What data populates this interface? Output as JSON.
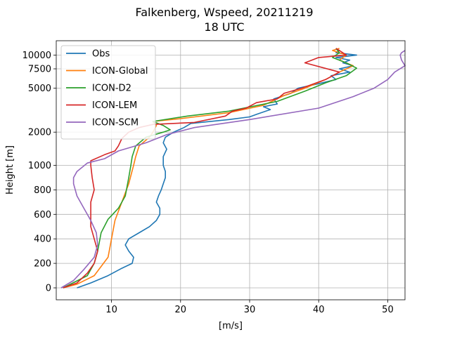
{
  "chart_data": {
    "type": "line",
    "title": "Falkenberg, Wspeed, 20211219",
    "subtitle": "18 UTC",
    "xlabel": "[m/s]",
    "ylabel": "Height [m]",
    "xlim": [
      2,
      52.5
    ],
    "xticks": [
      10,
      20,
      30,
      40,
      50
    ],
    "xtick_labels": [
      "10",
      "20",
      "30",
      "40",
      "50"
    ],
    "y_scale": "piecewise (linear 0–1000 m, logarithmic above)",
    "yticks": [
      0,
      200,
      400,
      600,
      800,
      1000,
      2000,
      5000,
      7500,
      10000
    ],
    "ytick_labels": [
      "0",
      "200",
      "400",
      "600",
      "800",
      "1000",
      "2000",
      "5000",
      "7500",
      "10000"
    ],
    "grid": true,
    "legend_position": "top-left",
    "series": [
      {
        "name": "Obs",
        "color": "#1f77b4",
        "points": [
          [
            5,
            0
          ],
          [
            7,
            40
          ],
          [
            9.5,
            100
          ],
          [
            11.5,
            160
          ],
          [
            13,
            200
          ],
          [
            13.2,
            250
          ],
          [
            12.5,
            300
          ],
          [
            12,
            350
          ],
          [
            12.5,
            400
          ],
          [
            14,
            450
          ],
          [
            15.5,
            500
          ],
          [
            16.5,
            550
          ],
          [
            17,
            600
          ],
          [
            17,
            650
          ],
          [
            16.5,
            700
          ],
          [
            16.8,
            750
          ],
          [
            17.2,
            800
          ],
          [
            17.5,
            850
          ],
          [
            17.8,
            900
          ],
          [
            17.8,
            950
          ],
          [
            17.5,
            1000
          ],
          [
            17.5,
            1200
          ],
          [
            18,
            1400
          ],
          [
            17.5,
            1600
          ],
          [
            17.8,
            1800
          ],
          [
            19,
            2000
          ],
          [
            20.5,
            2200
          ],
          [
            21.5,
            2400
          ],
          [
            27,
            2600
          ],
          [
            30,
            2750
          ],
          [
            31,
            2900
          ],
          [
            33,
            3200
          ],
          [
            32,
            3400
          ],
          [
            34,
            3600
          ],
          [
            33.5,
            4000
          ],
          [
            36,
            4500
          ],
          [
            37,
            5000
          ],
          [
            40,
            5500
          ],
          [
            42.5,
            6000
          ],
          [
            41.8,
            6500
          ],
          [
            44.5,
            7000
          ],
          [
            43,
            7500
          ],
          [
            45,
            8000
          ],
          [
            43.5,
            8500
          ],
          [
            44.5,
            9000
          ],
          [
            42.5,
            9500
          ],
          [
            45.5,
            10000
          ],
          [
            42.5,
            10500
          ],
          [
            43,
            11000
          ],
          [
            42.5,
            11500
          ]
        ]
      },
      {
        "name": "ICON-Global",
        "color": "#ff7f0e",
        "points": [
          [
            3,
            0
          ],
          [
            5,
            30
          ],
          [
            7.5,
            100
          ],
          [
            9.5,
            250
          ],
          [
            10,
            400
          ],
          [
            10.5,
            550
          ],
          [
            11.5,
            700
          ],
          [
            12.5,
            850
          ],
          [
            13.2,
            1000
          ],
          [
            13.5,
            1200
          ],
          [
            14,
            1500
          ],
          [
            15.5,
            1800
          ],
          [
            16,
            2000
          ],
          [
            16.5,
            2300
          ],
          [
            16,
            2500
          ],
          [
            20,
            2650
          ],
          [
            27,
            3000
          ],
          [
            32,
            3500
          ],
          [
            35,
            4300
          ],
          [
            38,
            5000
          ],
          [
            41,
            6000
          ],
          [
            43,
            7000
          ],
          [
            45,
            8000
          ],
          [
            43,
            9000
          ],
          [
            44,
            10000
          ],
          [
            42,
            11000
          ],
          [
            43,
            11500
          ]
        ]
      },
      {
        "name": "ICON-D2",
        "color": "#2ca02c",
        "points": [
          [
            3,
            0
          ],
          [
            6.5,
            100
          ],
          [
            7.5,
            200
          ],
          [
            8,
            300
          ],
          [
            8.5,
            450
          ],
          [
            9.5,
            560
          ],
          [
            11,
            650
          ],
          [
            12,
            750
          ],
          [
            12.5,
            900
          ],
          [
            12.8,
            1000
          ],
          [
            13,
            1200
          ],
          [
            13.5,
            1500
          ],
          [
            15,
            1800
          ],
          [
            17.5,
            2000
          ],
          [
            18.5,
            2100
          ],
          [
            17.5,
            2300
          ],
          [
            16,
            2500
          ],
          [
            21,
            2800
          ],
          [
            27,
            3100
          ],
          [
            34,
            3800
          ],
          [
            38,
            4700
          ],
          [
            41,
            5600
          ],
          [
            44,
            6500
          ],
          [
            45.5,
            7600
          ],
          [
            44,
            8500
          ],
          [
            42,
            9500
          ],
          [
            43,
            10500
          ],
          [
            42.5,
            11500
          ]
        ]
      },
      {
        "name": "ICON-LEM",
        "color": "#d62728",
        "points": [
          [
            3,
            0
          ],
          [
            5,
            40
          ],
          [
            6.5,
            120
          ],
          [
            7.5,
            200
          ],
          [
            8,
            300
          ],
          [
            7.5,
            400
          ],
          [
            7,
            500
          ],
          [
            7,
            600
          ],
          [
            7,
            700
          ],
          [
            7.5,
            800
          ],
          [
            7.2,
            900
          ],
          [
            7,
            1000
          ],
          [
            7,
            1100
          ],
          [
            9,
            1250
          ],
          [
            10.5,
            1350
          ],
          [
            11,
            1500
          ],
          [
            11.5,
            1750
          ],
          [
            12.5,
            2000
          ],
          [
            14,
            2200
          ],
          [
            16,
            2350
          ],
          [
            22,
            2450
          ],
          [
            26.5,
            2800
          ],
          [
            27.5,
            3100
          ],
          [
            29.5,
            3300
          ],
          [
            31,
            3700
          ],
          [
            34,
            4000
          ],
          [
            35,
            4500
          ],
          [
            37.5,
            5000
          ],
          [
            41,
            6000
          ],
          [
            43,
            7000
          ],
          [
            38,
            8500
          ],
          [
            40,
            9500
          ],
          [
            44,
            10000
          ],
          [
            43,
            11000
          ],
          [
            42.5,
            11500
          ]
        ]
      },
      {
        "name": "ICON-SCM",
        "color": "#9467bd",
        "points": [
          [
            2.7,
            0
          ],
          [
            4.5,
            60
          ],
          [
            6,
            150
          ],
          [
            7.5,
            250
          ],
          [
            8,
            350
          ],
          [
            7.8,
            450
          ],
          [
            7,
            550
          ],
          [
            6,
            650
          ],
          [
            5,
            750
          ],
          [
            4.5,
            850
          ],
          [
            4.5,
            900
          ],
          [
            5,
            950
          ],
          [
            6.5,
            1050
          ],
          [
            9,
            1150
          ],
          [
            11,
            1350
          ],
          [
            15,
            1600
          ],
          [
            18,
            1900
          ],
          [
            22,
            2200
          ],
          [
            30,
            2600
          ],
          [
            40,
            3300
          ],
          [
            45,
            4200
          ],
          [
            48,
            5000
          ],
          [
            50,
            6000
          ],
          [
            51,
            7000
          ],
          [
            52.5,
            8000
          ],
          [
            52,
            9000
          ],
          [
            51.8,
            10000
          ],
          [
            52,
            10500
          ],
          [
            52.5,
            11000
          ]
        ]
      }
    ]
  }
}
